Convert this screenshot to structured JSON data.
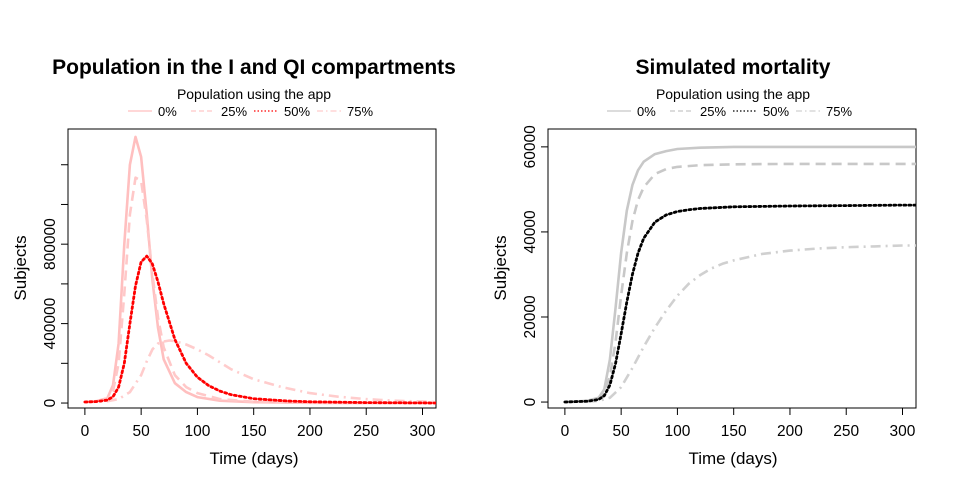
{
  "chart_data": [
    {
      "type": "line",
      "title": "Population in the I and QI compartments",
      "xlabel": "Time (days)",
      "ylabel": "Subjects",
      "xlim": [
        -15,
        312
      ],
      "ylim": [
        -25000,
        1380000
      ],
      "x_ticks": [
        0,
        50,
        100,
        150,
        200,
        250,
        300
      ],
      "y_ticks": [
        0,
        400000,
        800000
      ],
      "y_minor_ticks": [
        0,
        200000,
        400000,
        600000,
        800000,
        1000000,
        1200000
      ],
      "legend": {
        "title": "Population using the app",
        "position": "top-center"
      },
      "series": [
        {
          "name": "0%",
          "color": "#ffbfbf",
          "dash": "solid",
          "x": [
            0,
            10,
            20,
            25,
            30,
            35,
            40,
            45,
            50,
            55,
            60,
            65,
            70,
            80,
            90,
            100,
            120,
            150,
            200,
            250,
            300,
            312
          ],
          "values": [
            5000,
            9000,
            25000,
            90000,
            300000,
            800000,
            1200000,
            1340000,
            1240000,
            950000,
            620000,
            380000,
            220000,
            100000,
            55000,
            30000,
            12000,
            4000,
            1000,
            300,
            100,
            80
          ]
        },
        {
          "name": "25%",
          "color": "#ffc8c8",
          "dash": "dashed",
          "x": [
            0,
            10,
            20,
            25,
            30,
            35,
            40,
            45,
            50,
            55,
            60,
            65,
            70,
            80,
            90,
            100,
            120,
            150,
            200,
            250,
            300,
            312
          ],
          "values": [
            5000,
            8000,
            20000,
            60000,
            200000,
            550000,
            950000,
            1135000,
            1120000,
            920000,
            650000,
            430000,
            280000,
            140000,
            80000,
            50000,
            20000,
            6000,
            1500,
            400,
            100,
            80
          ]
        },
        {
          "name": "50%",
          "color": "#ff0000",
          "dash": "dotted",
          "x": [
            0,
            10,
            20,
            25,
            30,
            35,
            40,
            45,
            50,
            55,
            60,
            65,
            70,
            80,
            90,
            100,
            110,
            120,
            130,
            150,
            180,
            200,
            250,
            300,
            312
          ],
          "values": [
            5000,
            7000,
            15000,
            32000,
            80000,
            200000,
            400000,
            590000,
            710000,
            740000,
            700000,
            610000,
            500000,
            320000,
            200000,
            130000,
            88000,
            60000,
            42000,
            22000,
            10000,
            6000,
            2000,
            600,
            400
          ]
        },
        {
          "name": "75%",
          "color": "#ffcccc",
          "dash": "dashdot",
          "x": [
            0,
            10,
            20,
            30,
            40,
            50,
            55,
            60,
            65,
            70,
            75,
            80,
            90,
            100,
            110,
            120,
            130,
            150,
            175,
            200,
            225,
            250,
            275,
            300,
            312
          ],
          "values": [
            5000,
            6000,
            9000,
            20000,
            55000,
            140000,
            210000,
            270000,
            300000,
            310000,
            315000,
            312000,
            295000,
            270000,
            240000,
            205000,
            170000,
            120000,
            80000,
            50000,
            32000,
            20000,
            12000,
            7000,
            5000
          ]
        }
      ]
    },
    {
      "type": "line",
      "title": "Simulated mortality",
      "xlabel": "Time (days)",
      "ylabel": "Subjects",
      "xlim": [
        -15,
        312
      ],
      "ylim": [
        -1400,
        64200
      ],
      "x_ticks": [
        0,
        50,
        100,
        150,
        200,
        250,
        300
      ],
      "y_ticks": [
        0,
        20000,
        40000,
        60000
      ],
      "legend": {
        "title": "Population using the app",
        "position": "top-center"
      },
      "series": [
        {
          "name": "0%",
          "color": "#c8c8c8",
          "dash": "solid",
          "x": [
            0,
            20,
            30,
            35,
            40,
            45,
            50,
            55,
            60,
            65,
            70,
            80,
            90,
            100,
            120,
            150,
            200,
            250,
            300,
            312
          ],
          "values": [
            0,
            300,
            1000,
            3000,
            10000,
            22000,
            35000,
            45000,
            51000,
            54500,
            56500,
            58300,
            59000,
            59500,
            59800,
            60000,
            60000,
            60000,
            60000,
            60000
          ]
        },
        {
          "name": "25%",
          "color": "#c8c8c8",
          "dash": "dashed",
          "x": [
            0,
            20,
            30,
            35,
            40,
            45,
            50,
            55,
            60,
            65,
            70,
            80,
            90,
            100,
            120,
            150,
            200,
            250,
            300,
            312
          ],
          "values": [
            0,
            200,
            700,
            2000,
            6000,
            14000,
            25000,
            35000,
            42500,
            47500,
            50500,
            53600,
            54800,
            55300,
            55700,
            55900,
            56000,
            56000,
            56000,
            56000
          ]
        },
        {
          "name": "50%",
          "color": "#000000",
          "dash": "dotted",
          "x": [
            0,
            20,
            30,
            35,
            40,
            45,
            50,
            55,
            60,
            65,
            70,
            80,
            90,
            100,
            110,
            120,
            150,
            200,
            250,
            300,
            312
          ],
          "values": [
            0,
            200,
            600,
            1500,
            4000,
            9000,
            16000,
            23500,
            30000,
            35000,
            38500,
            42300,
            44000,
            44800,
            45200,
            45500,
            45900,
            46100,
            46200,
            46300,
            46300
          ]
        },
        {
          "name": "75%",
          "color": "#d0d0d0",
          "dash": "dashdot",
          "x": [
            0,
            20,
            30,
            40,
            50,
            60,
            70,
            80,
            90,
            100,
            110,
            120,
            130,
            140,
            150,
            175,
            200,
            225,
            250,
            275,
            300,
            312
          ],
          "values": [
            0,
            100,
            300,
            1000,
            3500,
            8000,
            13000,
            17500,
            21500,
            25000,
            27800,
            29800,
            31400,
            32500,
            33300,
            34800,
            35600,
            36100,
            36400,
            36600,
            36800,
            36800
          ]
        }
      ]
    }
  ]
}
